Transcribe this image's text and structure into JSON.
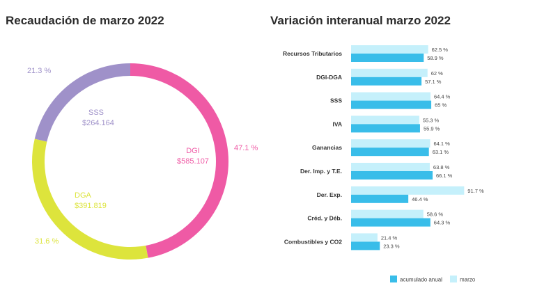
{
  "colors": {
    "dgi": "#ef5aa5",
    "dga": "#dde43c",
    "sss": "#9f91c9",
    "acumulado": "#39bde9",
    "marzo": "#c5f0fb",
    "title": "#2b2b2b"
  },
  "chart_data": [
    {
      "type": "pie",
      "title": "Recaudación de marzo 2022",
      "slices": [
        {
          "name": "DGI",
          "amount": "$585.107",
          "percent": 47.1,
          "percent_label": "47.1 %"
        },
        {
          "name": "DGA",
          "amount": "$391.819",
          "percent": 31.6,
          "percent_label": "31.6 %"
        },
        {
          "name": "SSS",
          "amount": "$264.164",
          "percent": 21.3,
          "percent_label": "21.3 %"
        }
      ]
    },
    {
      "type": "bar",
      "orientation": "horizontal",
      "title": "Variación interanual marzo 2022",
      "categories": [
        "Recursos Tributarios",
        "DGI-DGA",
        "SSS",
        "IVA",
        "Ganancias",
        "Der. Imp. y T.E.",
        "Der. Exp.",
        "Créd. y Déb.",
        "Combustibles y CO2"
      ],
      "series": [
        {
          "name": "marzo",
          "values": [
            62.5,
            62,
            64.4,
            55.3,
            64.1,
            63.8,
            91.7,
            58.6,
            21.4
          ],
          "labels": [
            "62.5 %",
            "62 %",
            "64.4 %",
            "55.3 %",
            "64.1 %",
            "63.8 %",
            "91.7 %",
            "58.6 %",
            "21.4 %"
          ]
        },
        {
          "name": "acumulado anual",
          "values": [
            58.9,
            57.1,
            65,
            55.9,
            63.1,
            66.1,
            46.4,
            64.3,
            23.3
          ],
          "labels": [
            "58.9 %",
            "57.1 %",
            "65 %",
            "55.9 %",
            "63.1 %",
            "66.1 %",
            "46.4 %",
            "64.3 %",
            "23.3 %"
          ]
        }
      ],
      "legend": [
        "acumulado anual",
        "marzo"
      ],
      "legend_position": "bottom"
    }
  ]
}
